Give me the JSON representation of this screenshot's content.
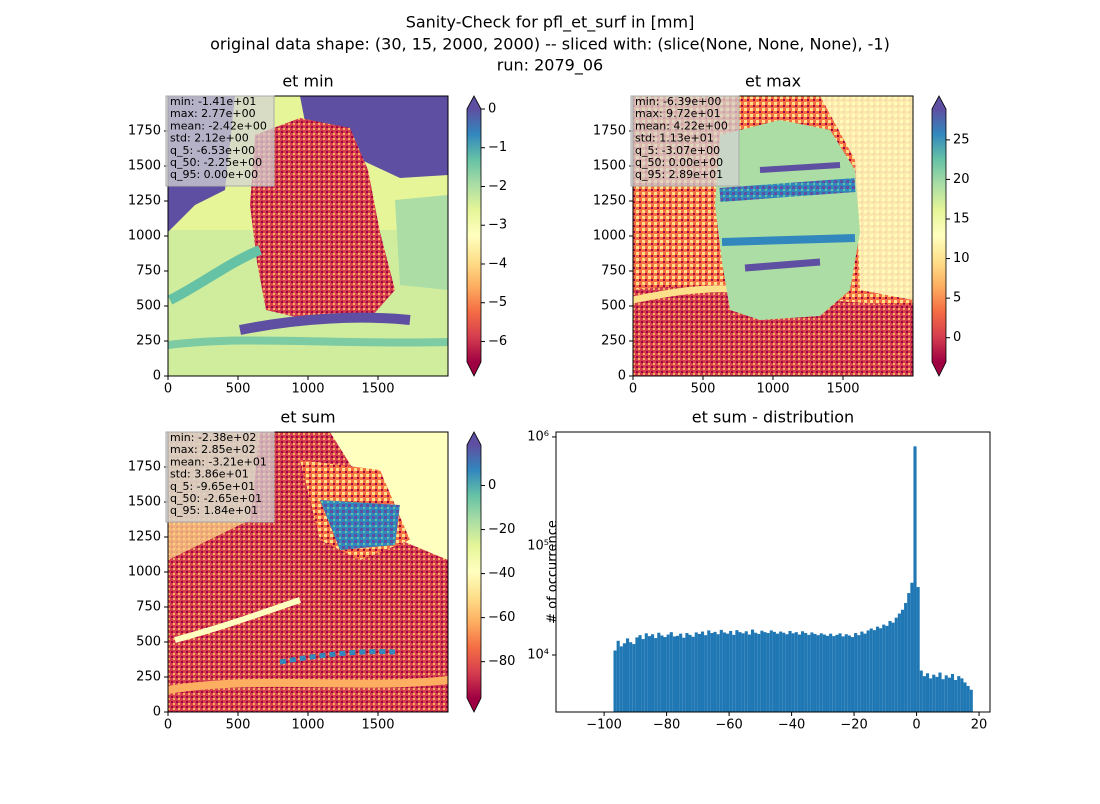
{
  "suptitle": [
    "Sanity-Check for pfl_et_surf in [mm]",
    "original data shape: (30, 15, 2000, 2000) -- sliced with: (slice(None, None, None), -1)",
    "run: 2079_06"
  ],
  "chart_data": [
    {
      "type": "image",
      "title": "et min",
      "xlim": [
        0,
        2000
      ],
      "ylim": [
        0,
        2000
      ],
      "xticks": [
        0,
        500,
        1000,
        1500
      ],
      "yticks": [
        0,
        250,
        500,
        750,
        1000,
        1250,
        1500,
        1750
      ],
      "colorbar": {
        "cmap": "Spectral",
        "extend": "both",
        "lim": [
          -6.53,
          0
        ],
        "ticks": [
          0,
          {
            "value": -1,
            "label": "−1"
          },
          {
            "value": -2,
            "label": "−2"
          },
          {
            "value": -3,
            "label": "−3"
          },
          {
            "value": -4,
            "label": "−4"
          },
          {
            "value": -5,
            "label": "−5"
          },
          {
            "value": -6,
            "label": "−6"
          }
        ]
      },
      "stats": [
        "min: -1.41e+01",
        "max: 2.77e+00",
        "mean: -2.42e+00",
        "std: 2.12e+00",
        "q_5: -6.53e+00",
        "q_50: -2.25e+00",
        "q_95: 0.00e+00"
      ]
    },
    {
      "type": "image",
      "title": "et max",
      "xlim": [
        0,
        2000
      ],
      "ylim": [
        0,
        2000
      ],
      "xticks": [
        0,
        500,
        1000,
        1500
      ],
      "yticks": [
        0,
        250,
        500,
        750,
        1000,
        1250,
        1500,
        1750
      ],
      "colorbar": {
        "cmap": "Spectral",
        "extend": "both",
        "lim": [
          -3.07,
          28.9
        ],
        "ticks": [
          0,
          5,
          10,
          15,
          20,
          25
        ]
      },
      "stats": [
        "min: -6.39e+00",
        "max: 9.72e+01",
        "mean: 4.22e+00",
        "std: 1.13e+01",
        "q_5: -3.07e+00",
        "q_50: 0.00e+00",
        "q_95: 2.89e+01"
      ]
    },
    {
      "type": "image",
      "title": "et sum",
      "xlim": [
        0,
        2000
      ],
      "ylim": [
        0,
        2000
      ],
      "xticks": [
        0,
        500,
        1000,
        1500
      ],
      "yticks": [
        0,
        250,
        500,
        750,
        1000,
        1250,
        1500,
        1750
      ],
      "colorbar": {
        "cmap": "Spectral",
        "extend": "both",
        "lim": [
          -96.5,
          18.4
        ],
        "ticks": [
          0,
          {
            "value": -20,
            "label": "−20"
          },
          {
            "value": -40,
            "label": "−40"
          },
          {
            "value": -60,
            "label": "−60"
          },
          {
            "value": -80,
            "label": "−80"
          }
        ]
      },
      "stats": [
        "min: -2.38e+02",
        "max: 2.85e+02",
        "mean: -3.21e+01",
        "std: 3.86e+01",
        "q_5: -9.65e+01",
        "q_50: -2.65e+01",
        "q_95: 1.84e+01"
      ]
    },
    {
      "type": "histogram",
      "title": "et sum - distribution",
      "ylabel": "# of occurrence",
      "color": "#1f77b4",
      "log_y": true,
      "xlim": [
        -115.4,
        23.5
      ],
      "ylim": [
        3000,
        1110000
      ],
      "xticks": [
        {
          "value": -100,
          "label": "−100"
        },
        {
          "value": -80,
          "label": "−80"
        },
        {
          "value": -60,
          "label": "−60"
        },
        {
          "value": -40,
          "label": "−40"
        },
        {
          "value": -20,
          "label": "−20"
        },
        0,
        20
      ],
      "yticks": [
        {
          "value": 10000,
          "label": "10⁴"
        },
        {
          "value": 100000,
          "label": "10⁵"
        },
        {
          "value": 1000000,
          "label": "10⁶"
        }
      ],
      "bins": [
        -97,
        -96,
        -95,
        -94,
        -93,
        -92,
        -91,
        -90,
        -89,
        -88,
        -87,
        -86,
        -85,
        -84,
        -83,
        -82,
        -81,
        -80,
        -79,
        -78,
        -77,
        -76,
        -75,
        -74,
        -73,
        -72,
        -71,
        -70,
        -69,
        -68,
        -67,
        -66,
        -65,
        -64,
        -63,
        -62,
        -61,
        -60,
        -59,
        -58,
        -57,
        -56,
        -55,
        -54,
        -53,
        -52,
        -51,
        -50,
        -49,
        -48,
        -47,
        -46,
        -45,
        -44,
        -43,
        -42,
        -41,
        -40,
        -39,
        -38,
        -37,
        -36,
        -35,
        -34,
        -33,
        -32,
        -31,
        -30,
        -29,
        -28,
        -27,
        -26,
        -25,
        -24,
        -23,
        -22,
        -21,
        -20,
        -19,
        -18,
        -17,
        -16,
        -15,
        -14,
        -13,
        -12,
        -11,
        -10,
        -9,
        -8,
        -7,
        -6,
        -5,
        -4,
        -3,
        -2,
        -1,
        0,
        1,
        2,
        3,
        4,
        5,
        6,
        7,
        8,
        9,
        10,
        11,
        12,
        13,
        14,
        15,
        16,
        17,
        18
      ],
      "values": [
        11000,
        13500,
        12000,
        12800,
        14200,
        13100,
        12600,
        14500,
        15200,
        14000,
        15800,
        14900,
        15500,
        14300,
        16000,
        15100,
        14600,
        15400,
        16200,
        14800,
        15000,
        15700,
        14400,
        15900,
        15300,
        14700,
        16100,
        15600,
        16400,
        15200,
        16800,
        15900,
        16300,
        15500,
        17000,
        16100,
        15700,
        16600,
        15300,
        16900,
        16200,
        15800,
        16500,
        15400,
        17100,
        16000,
        15600,
        16700,
        16200,
        15900,
        16800,
        16300,
        15700,
        16400,
        16000,
        15500,
        16600,
        15800,
        16200,
        15400,
        16500,
        15900,
        15300,
        16100,
        15600,
        15200,
        15800,
        15400,
        15000,
        15700,
        14900,
        15300,
        15800,
        14800,
        15500,
        15100,
        14600,
        15900,
        15200,
        16400,
        15700,
        16800,
        17500,
        16900,
        18200,
        17600,
        19000,
        18500,
        20500,
        19800,
        22000,
        24000,
        26000,
        30000,
        37000,
        46000,
        820000,
        42000,
        7200,
        6400,
        6800,
        6100,
        6600,
        6300,
        6900,
        6000,
        6500,
        6200,
        6700,
        5900,
        6400,
        6100,
        5600,
        5200,
        4800
      ]
    }
  ]
}
